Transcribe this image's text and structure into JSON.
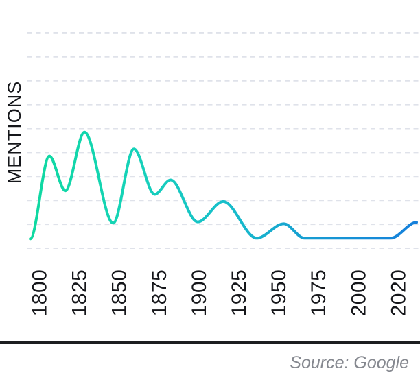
{
  "colors": {
    "background": "#ffffff",
    "gridline": "#dfe2ea",
    "axis_text": "#15161a",
    "divider": "#1d1e20",
    "source_text": "#85888f",
    "line_gradient": [
      "#0fd9a0",
      "#15d3b7",
      "#17bfca",
      "#1799d3",
      "#1580db"
    ]
  },
  "chart_data": {
    "type": "line",
    "title": "",
    "xlabel": "",
    "ylabel": "MENTIONS",
    "x_ticks": [
      1800,
      1825,
      1850,
      1875,
      1900,
      1925,
      1950,
      1975,
      2000,
      2020
    ],
    "ylim": [
      0,
      90
    ],
    "y_gridline_step": 10,
    "grid": "horizontal-dashed",
    "legend_position": "none",
    "series": [
      {
        "name": "mentions",
        "smoothing": "monotone",
        "points": [
          [
            1794,
            3.9
          ],
          [
            1806,
            38.5
          ],
          [
            1816,
            24.0
          ],
          [
            1828,
            48.5
          ],
          [
            1846,
            10.5
          ],
          [
            1859,
            41.5
          ],
          [
            1872,
            22.5
          ],
          [
            1882,
            28.5
          ],
          [
            1899,
            11.0
          ],
          [
            1915,
            19.5
          ],
          [
            1936,
            4.2
          ],
          [
            1953,
            10.2
          ],
          [
            1966,
            4.2
          ],
          [
            1992,
            4.2
          ],
          [
            2016,
            4.2
          ],
          [
            2029,
            10.8
          ]
        ]
      }
    ],
    "source_caption": "Source: Google"
  }
}
